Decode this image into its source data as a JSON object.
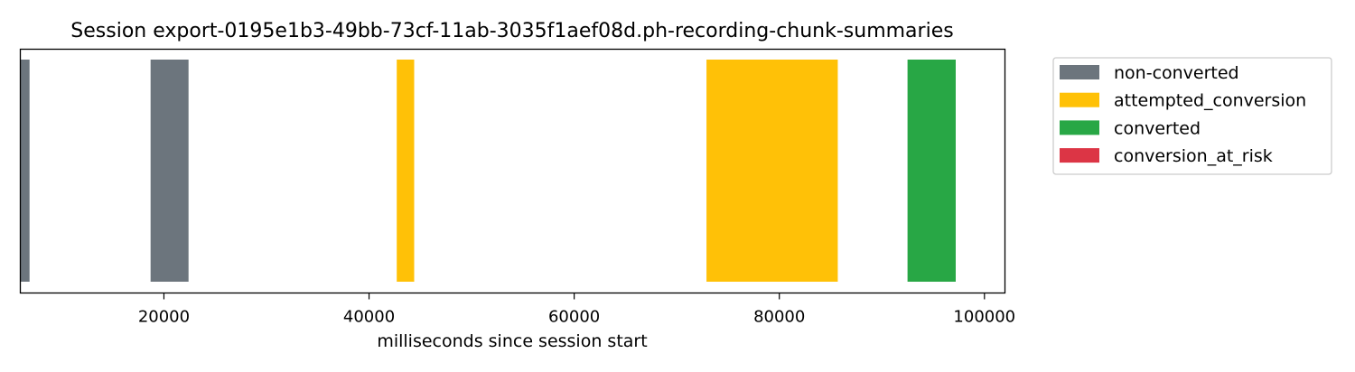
{
  "chart_data": {
    "type": "bar",
    "title": "Session export-0195e1b3-49bb-73cf-11ab-3035f1aef08d.ph-recording-chunk-summaries",
    "xlabel": "milliseconds since session start",
    "ylabel": "",
    "xlim": [
      6000,
      102000
    ],
    "xticks": [
      20000,
      40000,
      60000,
      80000,
      100000
    ],
    "xtick_labels": [
      "20000",
      "40000",
      "60000",
      "80000",
      "100000"
    ],
    "y_ticks_visible": false,
    "grid": false,
    "legend_position": "outside-right-top",
    "series": [
      {
        "name": "non-converted",
        "color": "#6c757d"
      },
      {
        "name": "attempted_conversion",
        "color": "#ffc107"
      },
      {
        "name": "converted",
        "color": "#28a745"
      },
      {
        "name": "conversion_at_risk",
        "color": "#dc3545"
      }
    ],
    "segments": [
      {
        "series": "non-converted",
        "start": 6000,
        "end": 6900
      },
      {
        "series": "non-converted",
        "start": 18700,
        "end": 22400
      },
      {
        "series": "attempted_conversion",
        "start": 42700,
        "end": 44400
      },
      {
        "series": "attempted_conversion",
        "start": 72900,
        "end": 85700
      },
      {
        "series": "converted",
        "start": 92500,
        "end": 97200
      }
    ]
  }
}
